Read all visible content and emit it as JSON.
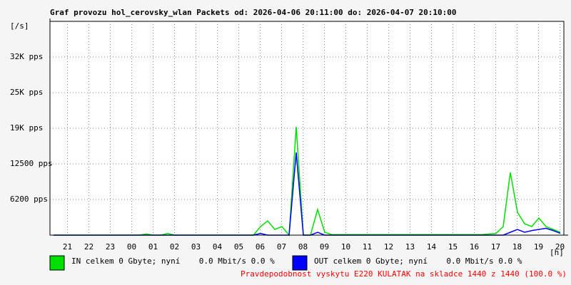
{
  "chart_data": {
    "type": "line",
    "title": "Graf provozu hol_cerovsky_wlan Packets od: 2026-04-06 20:11:00 do: 2026-04-07 20:10:00",
    "y_label": "[/s]",
    "x_label": "[h]",
    "x_labels": [
      "21",
      "22",
      "23",
      "00",
      "01",
      "02",
      "03",
      "04",
      "05",
      "06",
      "07",
      "08",
      "09",
      "10",
      "11",
      "12",
      "13",
      "14",
      "15",
      "16",
      "17",
      "18",
      "19",
      "20"
    ],
    "ylim": [
      0,
      37500
    ],
    "yticks": [
      {
        "value": 6250,
        "label": "6200 pps"
      },
      {
        "value": 12500,
        "label": "12500 pps"
      },
      {
        "value": 18750,
        "label": "19K pps"
      },
      {
        "value": 25000,
        "label": "25K pps"
      },
      {
        "value": 31250,
        "label": "32K pps"
      }
    ],
    "grid": true,
    "series": [
      {
        "name": "IN celkem 0 Gbyte; nyní    0.0 Mbit/s 0.0 %",
        "color": "#00e000",
        "values": [
          0,
          0,
          0,
          0,
          0,
          0,
          0,
          0,
          0,
          0,
          0,
          0,
          0,
          200,
          0,
          0,
          300,
          0,
          0,
          0,
          0,
          0,
          0,
          0,
          0,
          0,
          0,
          0,
          0,
          1500,
          2500,
          1000,
          1500,
          0,
          19000,
          0,
          0,
          4500,
          500,
          100,
          100,
          100,
          100,
          100,
          100,
          100,
          100,
          100,
          100,
          100,
          100,
          100,
          100,
          100,
          100,
          100,
          100,
          100,
          100,
          100,
          100,
          200,
          300,
          1500,
          11000,
          4000,
          2000,
          1500,
          3000,
          1500,
          1000,
          500
        ]
      },
      {
        "name": "OUT celkem 0 Gbyte; nyní    0.0 Mbit/s 0.0 %",
        "color": "#0000ff",
        "values": [
          0,
          0,
          0,
          0,
          0,
          0,
          0,
          0,
          0,
          0,
          0,
          0,
          0,
          0,
          0,
          0,
          0,
          0,
          0,
          0,
          0,
          0,
          0,
          0,
          0,
          0,
          0,
          0,
          0,
          300,
          0,
          0,
          0,
          0,
          14500,
          0,
          0,
          500,
          0,
          0,
          0,
          0,
          0,
          0,
          0,
          0,
          0,
          0,
          0,
          0,
          0,
          0,
          0,
          0,
          0,
          0,
          0,
          0,
          0,
          0,
          0,
          0,
          0,
          0,
          500,
          1000,
          500,
          800,
          1000,
          1200,
          800,
          300
        ]
      }
    ],
    "footnote": "Pravdepodobnost vyskytu E220 KULATAK na skladce 1440 z 1440 (100.0 %)"
  }
}
